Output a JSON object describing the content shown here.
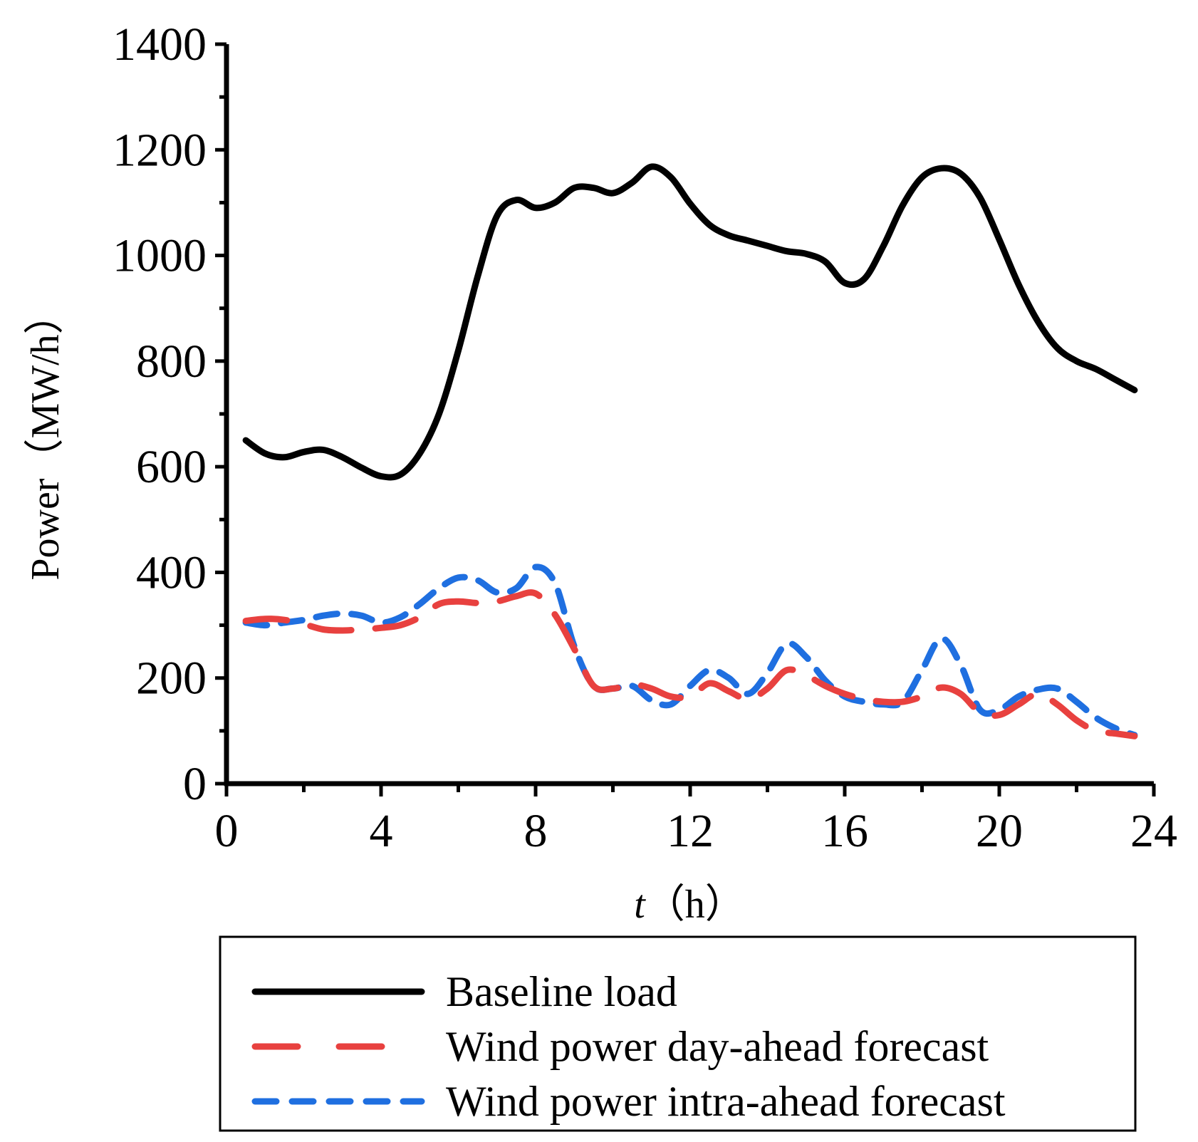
{
  "chart_data": {
    "type": "line",
    "title": "",
    "xlabel_italic": "t",
    "xlabel_unit": "（h）",
    "ylabel": "Power（MW/h）",
    "xlim": [
      0,
      24
    ],
    "ylim": [
      0,
      1400
    ],
    "xticks": [
      0,
      4,
      8,
      12,
      16,
      20,
      24
    ],
    "yticks": [
      0,
      200,
      400,
      600,
      800,
      1000,
      1200,
      1400
    ],
    "grid": false,
    "legend_position": "bottom",
    "series": [
      {
        "name": "Baseline load",
        "color": "#000000",
        "dash": "solid",
        "x": [
          0.5,
          1,
          1.5,
          2,
          2.5,
          3,
          3.5,
          4,
          4.5,
          5,
          5.5,
          6,
          6.5,
          7,
          7.5,
          8,
          8.5,
          9,
          9.5,
          10,
          10.5,
          11,
          11.5,
          12,
          12.5,
          13,
          13.5,
          14,
          14.5,
          15,
          15.5,
          16,
          16.5,
          17,
          17.5,
          18,
          18.5,
          19,
          19.5,
          20,
          20.5,
          21,
          21.5,
          22,
          22.5,
          23,
          23.5
        ],
        "values": [
          650,
          625,
          618,
          628,
          632,
          618,
          598,
          582,
          585,
          625,
          700,
          820,
          960,
          1075,
          1105,
          1090,
          1100,
          1128,
          1128,
          1118,
          1138,
          1168,
          1148,
          1098,
          1058,
          1038,
          1028,
          1018,
          1008,
          1003,
          988,
          948,
          955,
          1018,
          1095,
          1148,
          1165,
          1155,
          1110,
          1030,
          945,
          875,
          825,
          800,
          785,
          765,
          745
        ]
      },
      {
        "name": "Wind power day-ahead forecast",
        "color": "#e8413f",
        "dash": "long-dash",
        "x": [
          0.5,
          1,
          1.5,
          2,
          2.5,
          3,
          3.5,
          4,
          4.5,
          5,
          5.5,
          6,
          6.5,
          7,
          7.5,
          8,
          8.5,
          9,
          9.5,
          10,
          10.5,
          11,
          11.5,
          12,
          12.5,
          13,
          13.5,
          14,
          14.5,
          15,
          15.5,
          16,
          16.5,
          17,
          17.5,
          18,
          18.5,
          19,
          19.5,
          20,
          20.5,
          21,
          21.5,
          22,
          22.5,
          23,
          23.5
        ],
        "values": [
          308,
          312,
          310,
          302,
          292,
          290,
          292,
          295,
          300,
          315,
          340,
          345,
          342,
          345,
          355,
          360,
          320,
          255,
          185,
          180,
          188,
          180,
          165,
          165,
          190,
          175,
          160,
          180,
          215,
          205,
          185,
          170,
          160,
          155,
          155,
          165,
          182,
          170,
          135,
          130,
          150,
          170,
          150,
          120,
          100,
          95,
          90
        ]
      },
      {
        "name": "Wind power intra-ahead forecast",
        "color": "#1f6fe0",
        "dash": "short-dash",
        "x": [
          0.5,
          1,
          1.5,
          2,
          2.5,
          3,
          3.5,
          4,
          4.5,
          5,
          5.5,
          6,
          6.5,
          7,
          7.5,
          8,
          8.5,
          9,
          9.5,
          10,
          10.5,
          11,
          11.5,
          12,
          12.5,
          13,
          13.5,
          14,
          14.5,
          15,
          15.5,
          16,
          16.5,
          17,
          17.5,
          18,
          18.5,
          19,
          19.5,
          20,
          20.5,
          21,
          21.5,
          22,
          22.5,
          23,
          23.5
        ],
        "values": [
          305,
          300,
          305,
          310,
          318,
          322,
          318,
          305,
          315,
          340,
          370,
          390,
          385,
          362,
          370,
          410,
          380,
          260,
          185,
          180,
          185,
          158,
          150,
          185,
          215,
          200,
          170,
          210,
          265,
          240,
          195,
          165,
          155,
          150,
          155,
          215,
          275,
          225,
          140,
          140,
          165,
          178,
          180,
          155,
          125,
          105,
          92
        ]
      }
    ]
  }
}
